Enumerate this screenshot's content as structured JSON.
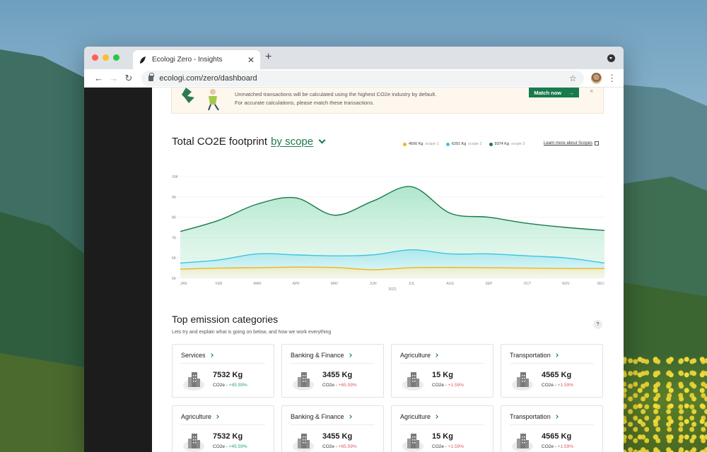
{
  "browser": {
    "tab_title": "Ecologi Zero - Insights",
    "url": "ecologi.com/zero/dashboard"
  },
  "banner": {
    "line1": "Unmatched transactions will be calculated using the highest CO2e industry by default.",
    "line2": "For accurate calculations, please match these transactions.",
    "button_label": "Match now",
    "button_arrow": "→",
    "close": "×"
  },
  "footprint": {
    "title": "Total CO2E footprint",
    "scope_link": "by scope",
    "learn_more": "Learn more about Scopes"
  },
  "legend": [
    {
      "value": "4500 Kg",
      "label": "scope 1",
      "color": "#f2b21b"
    },
    {
      "value": "6291 Kg",
      "label": "scope 2",
      "color": "#3fc3e0"
    },
    {
      "value": "9374 Kg",
      "label": "scope 3",
      "color": "#1a7a4c"
    }
  ],
  "chart_data": {
    "type": "area",
    "categories": [
      "JAN",
      "FEB",
      "MAR",
      "APR",
      "MAY",
      "JUN",
      "JUL",
      "AUG",
      "SEP",
      "OCT",
      "NOV",
      "DEC"
    ],
    "x_sublabel": "2022",
    "y_ticks": [
      "5K",
      "6K",
      "7K",
      "8K",
      "9K",
      "10K"
    ],
    "ylim": [
      5000,
      10000
    ],
    "series": [
      {
        "name": "scope 3",
        "color": "#1a7a4c",
        "values": [
          7300,
          7850,
          8650,
          8950,
          8100,
          8800,
          9500,
          8200,
          8000,
          7700,
          7500,
          7350
        ]
      },
      {
        "name": "scope 2",
        "color": "#3fc3e0",
        "values": [
          5750,
          5900,
          6200,
          6150,
          6100,
          6150,
          6400,
          6200,
          6200,
          6100,
          6000,
          5750
        ]
      },
      {
        "name": "scope 1",
        "color": "#f2b21b",
        "values": [
          5450,
          5500,
          5520,
          5550,
          5530,
          5420,
          5520,
          5530,
          5520,
          5500,
          5480,
          5480
        ]
      }
    ]
  },
  "categories": {
    "title": "Top emission categories",
    "subtitle": "Lets try and explain what is going on below,  and how we work everything",
    "help": "?",
    "co2e_label": "CO2e",
    "cards": [
      {
        "name": "Services",
        "value": "7532 Kg",
        "change": "+45.59%",
        "trend": "pos"
      },
      {
        "name": "Banking & Finance",
        "value": "3455 Kg",
        "change": "+65.59%",
        "trend": "neg"
      },
      {
        "name": "Agriculture",
        "value": "15 Kg",
        "change": "+1.59%",
        "trend": "neg"
      },
      {
        "name": "Transportation",
        "value": "4565 Kg",
        "change": "+1.59%",
        "trend": "neg"
      },
      {
        "name": "Agriculture",
        "value": "7532 Kg",
        "change": "+45.59%",
        "trend": "pos"
      },
      {
        "name": "Banking & Finance",
        "value": "3455 Kg",
        "change": "+65.59%",
        "trend": "neg"
      },
      {
        "name": "Agriculture",
        "value": "15 Kg",
        "change": "+1.59%",
        "trend": "neg"
      },
      {
        "name": "Transportation",
        "value": "4565 Kg",
        "change": "+1.59%",
        "trend": "neg"
      }
    ]
  }
}
